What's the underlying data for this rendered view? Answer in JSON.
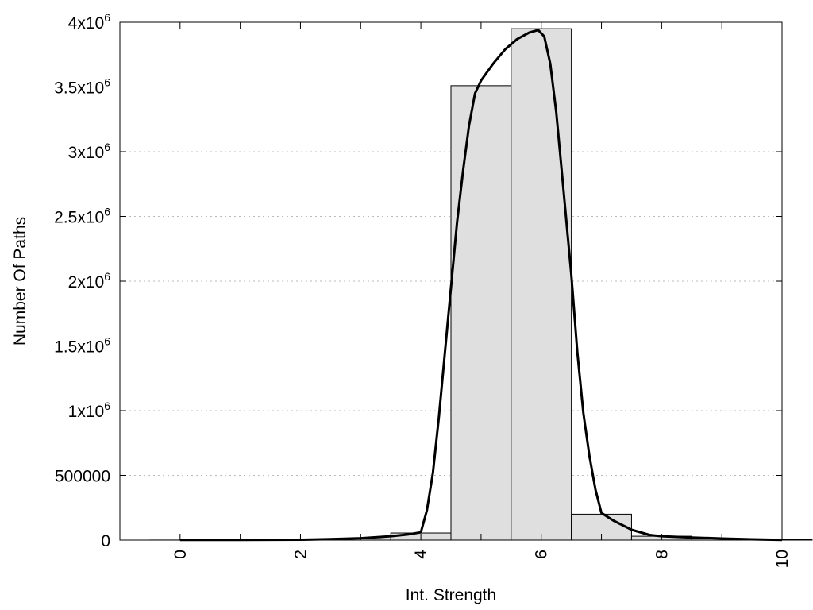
{
  "chart_data": {
    "type": "bar",
    "xlabel": "Int. Strength",
    "ylabel": "Number Of Paths",
    "xlim": [
      -1,
      10
    ],
    "ylim": [
      0,
      4000000
    ],
    "grid": "horizontal dotted",
    "bar_color": "#dfdfdf",
    "line_color": "#000000",
    "x_ticks": [
      {
        "value": 0,
        "label": "0"
      },
      {
        "value": 2,
        "label": "2"
      },
      {
        "value": 4,
        "label": "4"
      },
      {
        "value": 6,
        "label": "6"
      },
      {
        "value": 8,
        "label": "8"
      },
      {
        "value": 10,
        "label": "10"
      }
    ],
    "y_ticks": [
      {
        "value": 0,
        "base": "0",
        "exp": ""
      },
      {
        "value": 500000,
        "base": "500000",
        "exp": ""
      },
      {
        "value": 1000000,
        "base": "1x10",
        "exp": "6"
      },
      {
        "value": 1500000,
        "base": "1.5x10",
        "exp": "6"
      },
      {
        "value": 2000000,
        "base": "2x10",
        "exp": "6"
      },
      {
        "value": 2500000,
        "base": "2.5x10",
        "exp": "6"
      },
      {
        "value": 3000000,
        "base": "3x10",
        "exp": "6"
      },
      {
        "value": 3500000,
        "base": "3.5x10",
        "exp": "6"
      },
      {
        "value": 4000000,
        "base": "4x10",
        "exp": "6"
      }
    ],
    "bars": [
      {
        "x": 0,
        "value": 500
      },
      {
        "x": 1,
        "value": 800
      },
      {
        "x": 2,
        "value": 3000
      },
      {
        "x": 3,
        "value": 10000
      },
      {
        "x": 4,
        "value": 55000
      },
      {
        "x": 5,
        "value": 3510000
      },
      {
        "x": 6,
        "value": 3950000
      },
      {
        "x": 7,
        "value": 200000
      },
      {
        "x": 8,
        "value": 30000
      },
      {
        "x": 9,
        "value": 10000
      },
      {
        "x": 10,
        "value": 3000
      }
    ],
    "series": [
      {
        "type": "line",
        "x": [
          0,
          1,
          2,
          2.5,
          3,
          3.5,
          3.8,
          4.0,
          4.1,
          4.2,
          4.3,
          4.4,
          4.5,
          4.6,
          4.7,
          4.8,
          4.9,
          5.0,
          5.2,
          5.4,
          5.6,
          5.8,
          5.95,
          6.05,
          6.15,
          6.25,
          6.35,
          6.5,
          6.6,
          6.7,
          6.8,
          6.9,
          7.0,
          7.2,
          7.5,
          7.8,
          8.0,
          8.5,
          9.0,
          9.5,
          10.0
        ],
        "y": [
          2000,
          2000,
          3000,
          8000,
          15000,
          30000,
          45000,
          60000,
          230000,
          520000,
          950000,
          1450000,
          1950000,
          2450000,
          2850000,
          3200000,
          3450000,
          3550000,
          3680000,
          3790000,
          3870000,
          3920000,
          3940000,
          3890000,
          3680000,
          3300000,
          2800000,
          2050000,
          1450000,
          980000,
          650000,
          390000,
          210000,
          150000,
          80000,
          40000,
          30000,
          20000,
          12000,
          6000,
          2000
        ]
      }
    ]
  }
}
